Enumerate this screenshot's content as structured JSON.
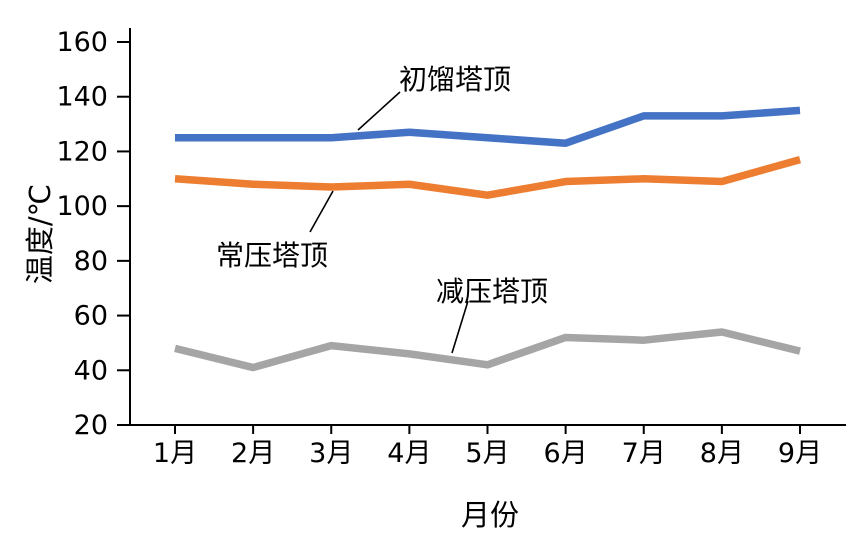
{
  "figure": {
    "background": "#ffffff"
  },
  "chart_data": {
    "type": "line",
    "title": "",
    "xlabel": "月份",
    "ylabel": "温度/℃",
    "categories": [
      "1月",
      "2月",
      "3月",
      "4月",
      "5月",
      "6月",
      "7月",
      "8月",
      "9月"
    ],
    "series": [
      {
        "name": "初馏塔顶",
        "color": "#4472C4",
        "values": [
          125,
          125,
          125,
          127,
          125,
          123,
          133,
          133,
          135
        ]
      },
      {
        "name": "常压塔顶",
        "color": "#ED7D31",
        "values": [
          110,
          108,
          107,
          108,
          104,
          109,
          110,
          109,
          117
        ]
      },
      {
        "name": "减压塔顶",
        "color": "#A5A5A5",
        "values": [
          48,
          41,
          49,
          46,
          42,
          52,
          51,
          54,
          47
        ]
      }
    ],
    "ylim": [
      20,
      160
    ],
    "yticks": [
      20,
      40,
      60,
      80,
      100,
      120,
      140,
      160
    ],
    "grid": false,
    "legend_position": "none",
    "annotations": [
      {
        "text": "初馏塔顶",
        "series_index": 0
      },
      {
        "text": "常压塔顶",
        "series_index": 1
      },
      {
        "text": "减压塔顶",
        "series_index": 2
      }
    ]
  }
}
